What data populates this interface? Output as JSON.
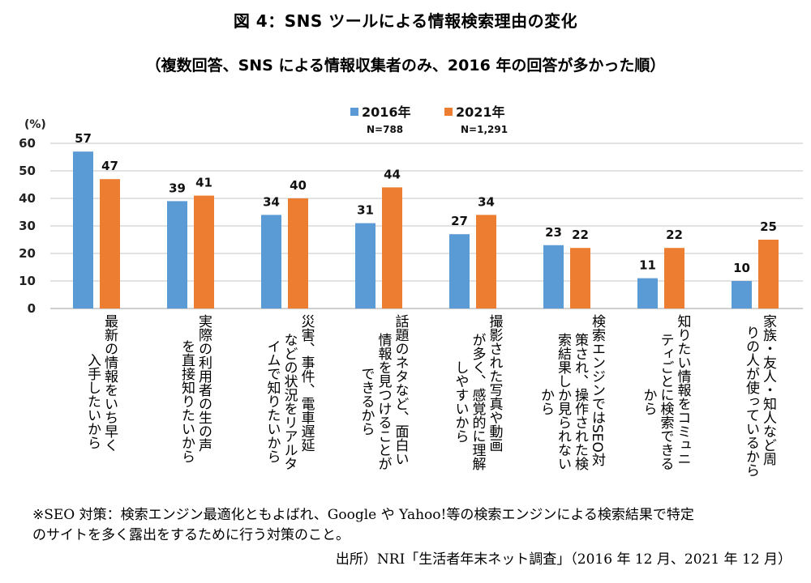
{
  "chart_data": {
    "type": "bar",
    "title": "図 4：SNS ツールによる情報検索理由の変化",
    "subtitle": "（複数回答、SNS による情報収集者のみ、2016 年の回答が多かった順）",
    "xlabel": "",
    "ylabel": "(%)",
    "ylim": [
      0,
      60
    ],
    "yticks": [
      0,
      10,
      20,
      30,
      40,
      50,
      60
    ],
    "grid": true,
    "legend_position": "top-center",
    "categories": [
      "最新の情報をいち早く入手したいから",
      "実際の利用者の生の声を直接知りたいから",
      "災害、事件、電車遅延などの状況をリアルタイムで知りたいから",
      "話題のネタなど、面白い情報を見つけることができるから",
      "撮影された写真や動画が多く、感覚的に理解しやすいから",
      "検索エンジンではSEO対策され、操作された検索結果しか見られないから",
      "知りたい情報をコミュニティごとに検索できるから",
      "家族・友人・知人など周りの人が使っているから"
    ],
    "category_lines": [
      [
        "最新の情報をいち早く",
        "入手したいから"
      ],
      [
        "実際の利用者の生の声",
        "を直接知りたいから"
      ],
      [
        "災害、事件、電車遅延",
        "などの状況をリアルタ",
        "イムで知りたいから"
      ],
      [
        "話題のネタなど、面白い",
        "情報を見つけることが",
        "できるから"
      ],
      [
        "撮影された写真や動画",
        "が多く、感覚的に理解",
        "しやすいから"
      ],
      [
        "検索エンジンではSEO対",
        "策され、操作された検",
        "索結果しか見られない",
        "から"
      ],
      [
        "知りたい情報をコミュニ",
        "ティごとに検索できる",
        "から"
      ],
      [
        "家族・友人・知人など周",
        "りの人が使っているから"
      ]
    ],
    "series": [
      {
        "name": "2016年",
        "n": "N=788",
        "color": "#5b9bd5",
        "values": [
          57,
          39,
          34,
          31,
          27,
          23,
          11,
          10
        ]
      },
      {
        "name": "2021年",
        "n": "N=1,291",
        "color": "#ed7d31",
        "values": [
          47,
          41,
          40,
          44,
          34,
          22,
          22,
          25
        ]
      }
    ]
  },
  "footnote": {
    "line1": "※SEO 対策：検索エンジン最適化ともよばれ、Google や Yahoo!等の検索エンジンによる検索結果で特定",
    "line2": "のサイトを多く露出をするために行う対策のこと。",
    "source": "出所）NRI「生活者年末ネット調査」（2016 年 12 月、2021 年 12 月）"
  },
  "colors": {
    "grid": "#d9d9d9",
    "axis": "#bfbfbf"
  }
}
